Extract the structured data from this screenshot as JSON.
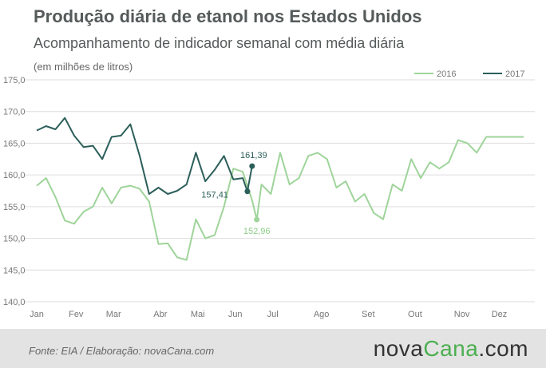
{
  "header": {
    "title": "Produção diária de etanol nos Estados Unidos",
    "subtitle": "Acompanhamento de indicador semanal com média diária",
    "unit": "(em milhões de litros)"
  },
  "footer": {
    "source": "Fonte:  EIA / Elaboração:  novaCana.com",
    "brand_prefix": "nova",
    "brand_main": "Cana",
    "brand_suffix": ".com"
  },
  "colors": {
    "series_2016": "#9fd49a",
    "series_2017": "#2c5f5a",
    "grid": "#dddddd",
    "footer_bg": "#e3e3e3"
  },
  "chart_data": {
    "type": "line",
    "ylim": [
      140,
      175
    ],
    "yticks": [
      "140,0",
      "145,0",
      "150,0",
      "155,0",
      "160,0",
      "165,0",
      "170,0",
      "175,0"
    ],
    "ytick_values": [
      140,
      145,
      150,
      155,
      160,
      165,
      170,
      175
    ],
    "xlim": [
      0,
      52
    ],
    "xticks": [
      "Jan",
      "Fev",
      "Mar",
      "Abr",
      "Mai",
      "Jun",
      "Jul",
      "Ago",
      "Set",
      "Out",
      "Nov",
      "Dez"
    ],
    "xtick_weeks": [
      0,
      4.2,
      8.2,
      13.2,
      17.2,
      21.2,
      25.2,
      30.4,
      35.4,
      40.4,
      45.4,
      49.4
    ],
    "grid": true,
    "legend": "top-right",
    "series": [
      {
        "name": "2016",
        "x": [
          0,
          1,
          2,
          3,
          4,
          5,
          6,
          7,
          8,
          9,
          10,
          11,
          12,
          13,
          14,
          15,
          16,
          17,
          18,
          19,
          20,
          21,
          22,
          23,
          23.5,
          24,
          25,
          26,
          27,
          28,
          29,
          30,
          31,
          32,
          33,
          34,
          35,
          36,
          37,
          38,
          39,
          40,
          41,
          42,
          43,
          44,
          45,
          46,
          47,
          48,
          49,
          50,
          51,
          52
        ],
        "values": [
          158.3,
          159.5,
          156.5,
          152.8,
          152.3,
          154.2,
          155.0,
          158.0,
          155.5,
          158.0,
          158.3,
          157.8,
          155.8,
          149.1,
          149.2,
          147.0,
          146.6,
          153.0,
          150.0,
          150.5,
          155.0,
          161.0,
          160.5,
          156.0,
          152.96,
          158.5,
          157.0,
          163.5,
          158.5,
          159.5,
          163.0,
          163.5,
          162.5,
          158.0,
          159.0,
          155.8,
          157.0,
          154.0,
          153.0,
          158.5,
          157.5,
          162.5,
          159.5,
          162.0,
          161.0,
          162.0,
          165.5,
          165.0,
          163.5,
          166.0,
          166.0,
          166.0,
          166.0,
          166.0
        ],
        "annotations": [
          {
            "label": "152,96",
            "value": 152.96
          }
        ]
      },
      {
        "name": "2017",
        "x": [
          0,
          1,
          2,
          3,
          4,
          5,
          6,
          7,
          8,
          9,
          10,
          11,
          12,
          13,
          14,
          15,
          16,
          17,
          18,
          19,
          20,
          21,
          22,
          22.5,
          23
        ],
        "values": [
          167.0,
          167.7,
          167.2,
          169.0,
          166.2,
          164.4,
          164.6,
          162.5,
          166.0,
          166.2,
          168.0,
          163.0,
          157.0,
          158.0,
          157.0,
          157.5,
          158.5,
          163.5,
          159.0,
          160.8,
          163.0,
          159.3,
          159.5,
          157.41,
          161.39
        ],
        "annotations": [
          {
            "label": "157,41",
            "value": 157.41
          },
          {
            "label": "161,39",
            "value": 161.39
          }
        ]
      }
    ]
  }
}
